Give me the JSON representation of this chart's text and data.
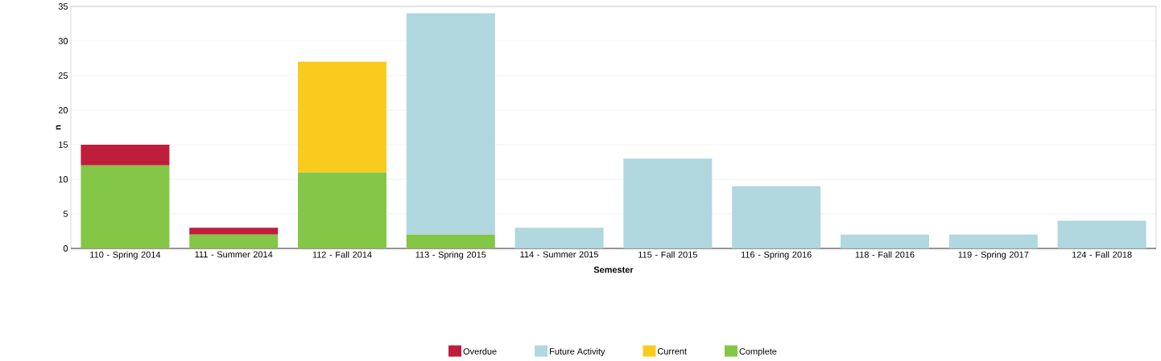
{
  "chart_data": {
    "type": "bar",
    "stacked": true,
    "xlabel": "Semester",
    "ylabel": "n",
    "categories": [
      "110 - Spring 2014",
      "111 - Summer 2014",
      "112 - Fall 2014",
      "113 - Spring 2015",
      "114 - Summer 2015",
      "115 - Fall 2015",
      "116 - Spring 2016",
      "118 - Fall 2016",
      "119 - Spring 2017",
      "124 - Fall 2018"
    ],
    "series": [
      {
        "name": "Complete",
        "color": "#84c645",
        "values": [
          12,
          2,
          11,
          2,
          0,
          0,
          0,
          0,
          0,
          0
        ]
      },
      {
        "name": "Current",
        "color": "#f9cb1f",
        "values": [
          0,
          0,
          16,
          0,
          0,
          0,
          0,
          0,
          0,
          0
        ]
      },
      {
        "name": "Future Activity",
        "color": "#b0d8de",
        "values": [
          0,
          0,
          0,
          32,
          3,
          13,
          9,
          2,
          2,
          4
        ]
      },
      {
        "name": "Overdue",
        "color": "#be1e3c",
        "values": [
          3,
          1,
          0,
          0,
          0,
          0,
          0,
          0,
          0,
          0
        ]
      }
    ],
    "ylim": [
      0,
      35
    ],
    "yticks": [
      0,
      5,
      10,
      15,
      20,
      25,
      30,
      35
    ],
    "grid": "y",
    "legend": "bottom"
  }
}
